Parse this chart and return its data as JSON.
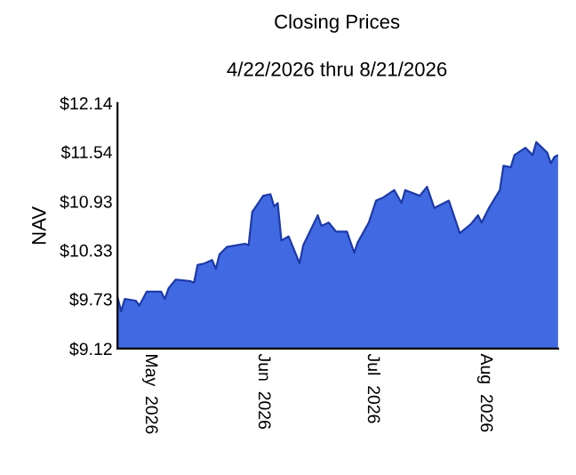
{
  "chart_data": {
    "type": "area",
    "title": "Closing Prices",
    "subtitle": "4/22/2026 thru 8/21/2026",
    "ylabel": "NAV",
    "x": [
      "2026-04-22",
      "2026-04-23",
      "2026-04-24",
      "2026-04-27",
      "2026-04-28",
      "2026-04-30",
      "2026-05-04",
      "2026-05-05",
      "2026-05-06",
      "2026-05-08",
      "2026-05-12",
      "2026-05-13",
      "2026-05-14",
      "2026-05-16",
      "2026-05-18",
      "2026-05-19",
      "2026-05-20",
      "2026-05-22",
      "2026-05-27",
      "2026-05-28",
      "2026-05-29",
      "2026-06-01",
      "2026-06-03",
      "2026-06-04",
      "2026-06-05",
      "2026-06-06",
      "2026-06-08",
      "2026-06-11",
      "2026-06-12",
      "2026-06-16",
      "2026-06-17",
      "2026-06-19",
      "2026-06-21",
      "2026-06-24",
      "2026-06-26",
      "2026-06-27",
      "2026-06-30",
      "2026-07-02",
      "2026-07-04",
      "2026-07-07",
      "2026-07-09",
      "2026-07-10",
      "2026-07-14",
      "2026-07-16",
      "2026-07-18",
      "2026-07-22",
      "2026-07-25",
      "2026-07-28",
      "2026-07-30",
      "2026-07-31",
      "2026-08-02",
      "2026-08-05",
      "2026-08-06",
      "2026-08-08",
      "2026-08-09",
      "2026-08-12",
      "2026-08-14",
      "2026-08-15",
      "2026-08-18",
      "2026-08-19",
      "2026-08-20",
      "2026-08-21"
    ],
    "series": [
      {
        "color": "#4169e1",
        "values": [
          9.75,
          9.58,
          9.73,
          9.71,
          9.65,
          9.82,
          9.82,
          9.73,
          9.86,
          9.97,
          9.95,
          9.93,
          10.15,
          10.17,
          10.21,
          10.1,
          10.28,
          10.37,
          10.41,
          10.39,
          10.8,
          11.0,
          11.02,
          10.87,
          10.91,
          10.45,
          10.5,
          10.17,
          10.39,
          10.76,
          10.63,
          10.67,
          10.56,
          10.56,
          10.3,
          10.43,
          10.67,
          10.94,
          10.98,
          11.07,
          10.91,
          11.07,
          11.0,
          11.11,
          10.85,
          10.94,
          10.54,
          10.65,
          10.76,
          10.67,
          10.85,
          11.07,
          11.37,
          11.35,
          11.5,
          11.59,
          11.5,
          11.66,
          11.53,
          11.4,
          11.48,
          11.5
        ]
      }
    ],
    "xlim": [
      "2026-04-22",
      "2026-08-21"
    ],
    "xticks": [
      {
        "value": "2026-05-01",
        "label": "May  2026"
      },
      {
        "value": "2026-06-01",
        "label": "Jun  2026"
      },
      {
        "value": "2026-07-01",
        "label": "Jul  2026"
      },
      {
        "value": "2026-08-01",
        "label": "Aug  2026"
      }
    ],
    "ylim": [
      9.12,
      12.14
    ],
    "yticks": [
      {
        "value": 9.12,
        "label": "$9.12"
      },
      {
        "value": 9.73,
        "label": "$9.73"
      },
      {
        "value": 10.33,
        "label": "$10.33"
      },
      {
        "value": 10.93,
        "label": "$10.93"
      },
      {
        "value": 11.54,
        "label": "$11.54"
      },
      {
        "value": 12.14,
        "label": "$12.14"
      }
    ],
    "grid": false,
    "legend": false
  }
}
